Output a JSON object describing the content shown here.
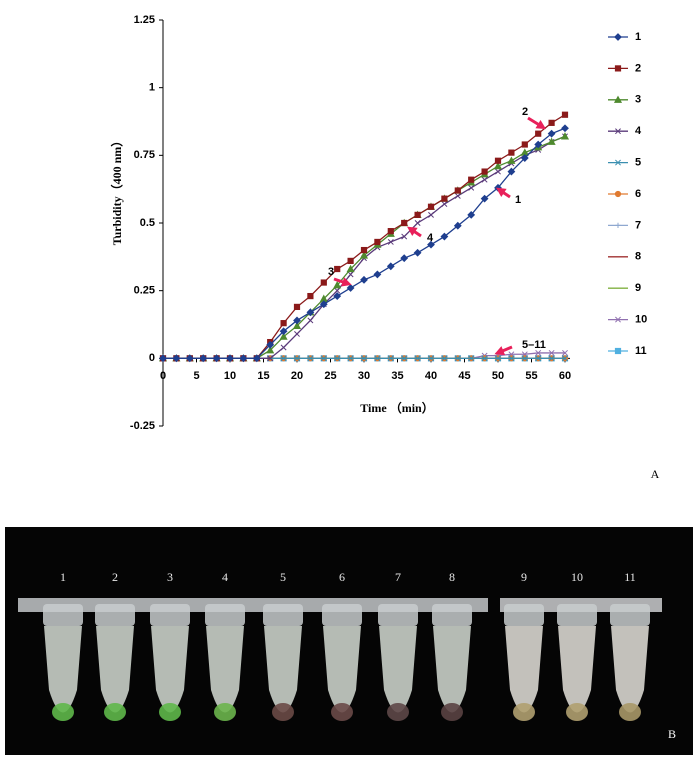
{
  "chart_data": {
    "type": "line",
    "xlabel": "Time （min）",
    "ylabel": "Turbidity（400 nm）",
    "x": [
      0,
      2,
      4,
      6,
      8,
      10,
      12,
      14,
      16,
      18,
      20,
      22,
      24,
      26,
      28,
      30,
      32,
      34,
      36,
      38,
      40,
      42,
      44,
      46,
      48,
      50,
      52,
      54,
      56,
      58,
      60
    ],
    "xlim": [
      0,
      60
    ],
    "xticks": [
      0,
      5,
      10,
      15,
      20,
      25,
      30,
      35,
      40,
      45,
      50,
      55,
      60
    ],
    "ylim": [
      -0.25,
      1.25
    ],
    "yticks": [
      -0.25,
      0,
      0.25,
      0.5,
      0.75,
      1,
      1.25
    ],
    "legend": "right",
    "series": [
      {
        "name": "1",
        "color": "#1f3f8f",
        "marker": "diamond",
        "values": [
          0,
          0,
          0,
          0,
          0,
          0,
          0,
          0,
          0.05,
          0.1,
          0.14,
          0.17,
          0.2,
          0.23,
          0.26,
          0.29,
          0.31,
          0.34,
          0.37,
          0.39,
          0.42,
          0.45,
          0.49,
          0.53,
          0.59,
          0.63,
          0.69,
          0.74,
          0.79,
          0.83,
          0.85
        ]
      },
      {
        "name": "2",
        "color": "#8b1a1a",
        "marker": "square",
        "values": [
          0,
          0,
          0,
          0,
          0,
          0,
          0,
          0,
          0.06,
          0.13,
          0.19,
          0.23,
          0.28,
          0.33,
          0.36,
          0.4,
          0.43,
          0.47,
          0.5,
          0.53,
          0.56,
          0.59,
          0.62,
          0.66,
          0.69,
          0.73,
          0.76,
          0.79,
          0.83,
          0.87,
          0.9
        ]
      },
      {
        "name": "3",
        "color": "#4e8a2e",
        "marker": "triangle",
        "values": [
          0,
          0,
          0,
          0,
          0,
          0,
          0,
          0,
          0.03,
          0.08,
          0.12,
          0.17,
          0.22,
          0.27,
          0.33,
          0.38,
          0.42,
          0.46,
          0.5,
          0.53,
          0.56,
          0.59,
          0.62,
          0.65,
          0.68,
          0.71,
          0.73,
          0.76,
          0.78,
          0.8,
          0.82
        ]
      },
      {
        "name": "4",
        "color": "#5a3a7a",
        "marker": "x",
        "values": [
          0,
          0,
          0,
          0,
          0,
          0,
          0,
          0,
          0,
          0.04,
          0.09,
          0.14,
          0.2,
          0.25,
          0.31,
          0.37,
          0.41,
          0.43,
          0.45,
          0.5,
          0.53,
          0.57,
          0.6,
          0.63,
          0.66,
          0.69,
          0.72,
          0.75,
          0.77,
          0.8,
          0.82
        ]
      },
      {
        "name": "5",
        "color": "#3a8fb0",
        "marker": "x",
        "values": [
          0,
          0,
          0,
          0,
          0,
          0,
          0,
          0,
          0,
          0,
          0,
          0,
          0,
          0,
          0,
          0,
          0,
          0,
          0,
          0,
          0,
          0,
          0,
          0,
          0,
          0,
          0,
          0,
          0,
          0,
          0
        ]
      },
      {
        "name": "6",
        "color": "#e07a30",
        "marker": "circle",
        "values": [
          0,
          0,
          0,
          0,
          0,
          0,
          0,
          0,
          0,
          0,
          0,
          0,
          0,
          0,
          0,
          0,
          0,
          0,
          0,
          0,
          0,
          0,
          0,
          0,
          0,
          0,
          0,
          0,
          0,
          0,
          0
        ]
      },
      {
        "name": "7",
        "color": "#8fa8d0",
        "marker": "plus",
        "values": [
          0,
          0,
          0,
          0,
          0,
          0,
          0,
          0,
          0,
          0,
          0,
          0,
          0,
          0,
          0,
          0,
          0,
          0,
          0,
          0,
          0,
          0,
          0,
          0,
          0,
          0,
          0,
          0,
          0,
          0,
          0
        ]
      },
      {
        "name": "8",
        "color": "#a03030",
        "marker": "none",
        "values": [
          0,
          0,
          0,
          0,
          0,
          0,
          0,
          0,
          0,
          0,
          0,
          0,
          0,
          0,
          0,
          0,
          0,
          0,
          0,
          0,
          0,
          0,
          0,
          0,
          0,
          0,
          0,
          0,
          0,
          0,
          0
        ]
      },
      {
        "name": "9",
        "color": "#80b040",
        "marker": "none",
        "values": [
          0,
          0,
          0,
          0,
          0,
          0,
          0,
          0,
          0,
          0,
          0,
          0,
          0,
          0,
          0,
          0,
          0,
          0,
          0,
          0,
          0,
          0,
          0,
          0,
          0,
          0,
          0,
          0,
          0,
          0,
          0
        ]
      },
      {
        "name": "10",
        "color": "#9070b0",
        "marker": "x",
        "values": [
          0,
          0,
          0,
          0,
          0,
          0,
          0,
          0,
          0,
          0,
          0,
          0,
          0,
          0,
          0,
          0,
          0,
          0,
          0,
          0,
          0,
          0,
          0,
          0,
          0.01,
          0.01,
          0.015,
          0.015,
          0.02,
          0.02,
          0.02
        ]
      },
      {
        "name": "11",
        "color": "#50b0e0",
        "marker": "square",
        "values": [
          0,
          0,
          0,
          0,
          0,
          0,
          0,
          0,
          0,
          0,
          0,
          0,
          0,
          0,
          0,
          0,
          0,
          0,
          0,
          0,
          0,
          0,
          0,
          0,
          0,
          0,
          0,
          0,
          0,
          0,
          0
        ]
      }
    ],
    "annotations": [
      "1",
      "2",
      "3",
      "4",
      "5–11"
    ]
  },
  "panel_labels": [
    "A",
    "B"
  ],
  "photo": {
    "labels": [
      "1",
      "2",
      "3",
      "4",
      "5",
      "6",
      "7",
      "8",
      "9",
      "10",
      "11"
    ]
  }
}
